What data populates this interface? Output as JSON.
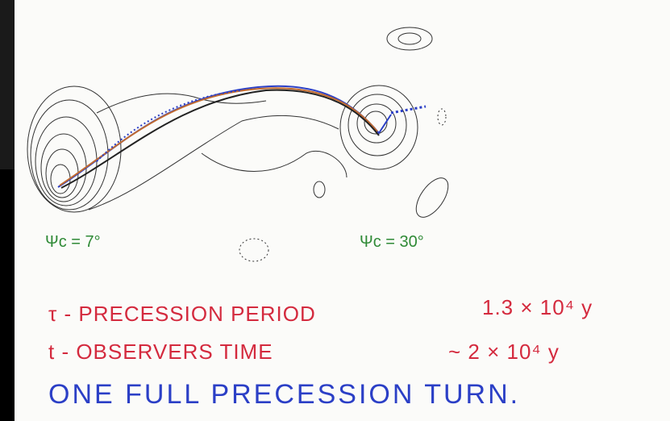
{
  "labels": {
    "angle_left": "Ψc = 7°",
    "angle_right": "Ψc = 30°"
  },
  "notes": [
    {
      "term": "τ - PRECESSION PERIOD",
      "value": "1.3 × 10⁴ y"
    },
    {
      "term": "t - OBSERVERS TIME",
      "value": "~ 2 × 10⁴ y"
    }
  ],
  "caption": "ONE FULL PRECESSION TURN."
}
